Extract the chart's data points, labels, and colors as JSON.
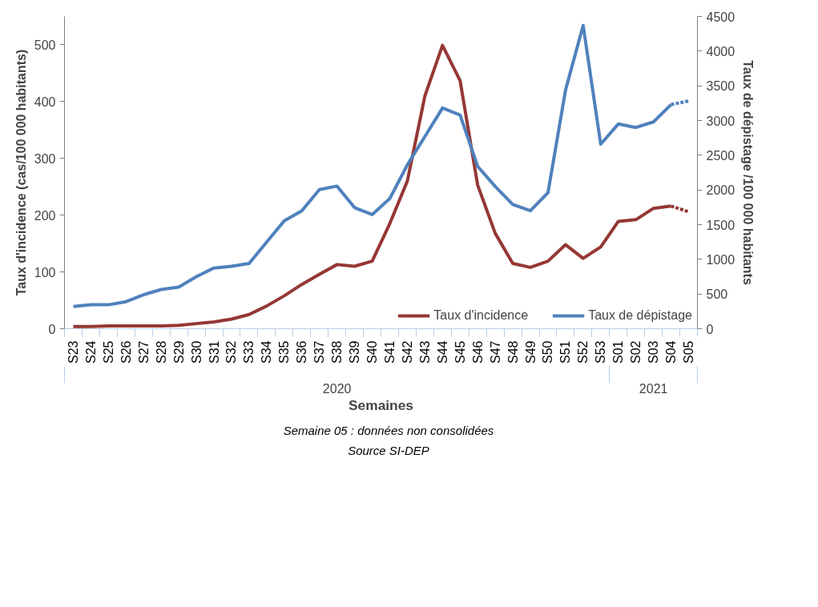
{
  "chart_data": {
    "type": "line",
    "xlabel": "Semaines",
    "ylabel": "Taux d'incidence (cas/100 000 habitants)",
    "y2label": "Taux de dépistage /100 000 habitants",
    "categories": [
      "S23",
      "S24",
      "S25",
      "S26",
      "S27",
      "S28",
      "S29",
      "S30",
      "S31",
      "S32",
      "S33",
      "S34",
      "S35",
      "S36",
      "S37",
      "S38",
      "S39",
      "S40",
      "S41",
      "S42",
      "S43",
      "S44",
      "S45",
      "S46",
      "S47",
      "S48",
      "S49",
      "S50",
      "S51",
      "S52",
      "S53",
      "S01",
      "S02",
      "S03",
      "S04",
      "S05"
    ],
    "ylim": [
      0,
      550
    ],
    "yticks": [
      0,
      100,
      200,
      300,
      400,
      500
    ],
    "y2lim": [
      0,
      4500
    ],
    "y2ticks": [
      0,
      500,
      1000,
      1500,
      2000,
      2500,
      3000,
      3500,
      4000,
      4500
    ],
    "grid": false,
    "legend": "bottom right",
    "marker": "none",
    "series": [
      {
        "name": "Taux d'incidence",
        "color": "#953735",
        "line_style": "solid",
        "values": [
          4,
          4,
          5,
          5,
          5,
          5,
          6,
          9,
          12,
          17,
          25,
          40,
          58,
          78,
          96,
          113,
          110,
          119,
          185,
          260,
          410,
          499,
          437,
          253,
          168,
          115,
          108,
          119,
          148,
          124,
          144,
          189,
          192,
          212,
          216,
          null
        ]
      },
      {
        "color": "#953735",
        "line_style": "dashed",
        "values": [
          null,
          null,
          null,
          null,
          null,
          null,
          null,
          null,
          null,
          null,
          null,
          null,
          null,
          null,
          null,
          null,
          null,
          null,
          null,
          null,
          null,
          null,
          null,
          null,
          null,
          null,
          null,
          null,
          null,
          null,
          null,
          null,
          null,
          null,
          216,
          206
        ]
      },
      {
        "name": "Taux de dépistage",
        "color": "#4f81bd",
        "axis": "y2",
        "line_style": "solid",
        "values": [
          320,
          345,
          345,
          390,
          490,
          565,
          600,
          750,
          875,
          900,
          940,
          1250,
          1555,
          1700,
          2005,
          2055,
          1745,
          1645,
          1875,
          2360,
          2770,
          3180,
          3080,
          2340,
          2050,
          1790,
          1700,
          1960,
          3440,
          4370,
          2660,
          2950,
          2900,
          2980,
          3230,
          null
        ]
      },
      {
        "color": "#4f81bd",
        "axis": "y2",
        "line_style": "dashed",
        "values": [
          null,
          null,
          null,
          null,
          null,
          null,
          null,
          null,
          null,
          null,
          null,
          null,
          null,
          null,
          null,
          null,
          null,
          null,
          null,
          null,
          null,
          null,
          null,
          null,
          null,
          null,
          null,
          null,
          null,
          null,
          null,
          null,
          null,
          null,
          3230,
          3280
        ]
      }
    ],
    "annotations": [
      "2020",
      "2021",
      "Semaine 05 : données non consolidées",
      "Source SI-DEP"
    ]
  }
}
